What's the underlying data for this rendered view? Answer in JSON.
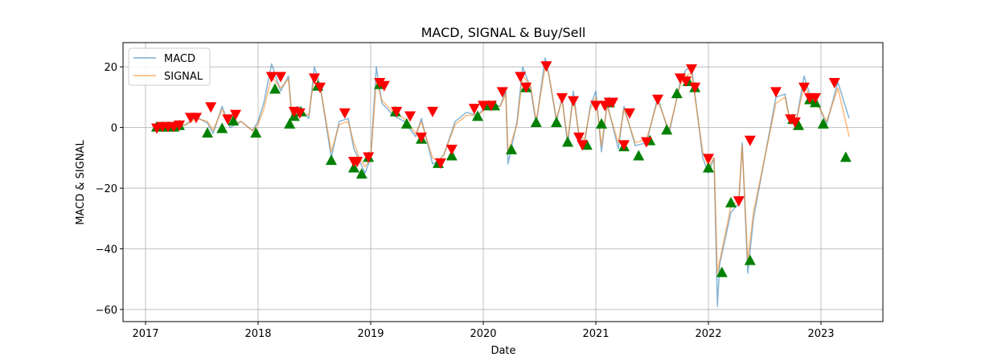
{
  "chart_data": {
    "type": "line",
    "title": "MACD, SIGNAL & Buy/Sell",
    "xlabel": "Date",
    "ylabel": "MACD & SIGNAL",
    "xlim": [
      2016.8,
      2023.55
    ],
    "ylim": [
      -64,
      28
    ],
    "x_ticks": [
      2017,
      2018,
      2019,
      2020,
      2021,
      2022,
      2023
    ],
    "x_tick_labels": [
      "2017",
      "2018",
      "2019",
      "2020",
      "2021",
      "2022",
      "2023"
    ],
    "y_ticks": [
      -60,
      -40,
      -20,
      0,
      20
    ],
    "y_tick_labels": [
      "−60",
      "−40",
      "−20",
      "0",
      "20"
    ],
    "grid": true,
    "legend": {
      "position": "upper-left",
      "entries": [
        "MACD",
        "SIGNAL"
      ]
    },
    "colors": {
      "macd": "#1f77b4",
      "signal": "#ff7f0e",
      "buy": "#008000",
      "sell": "#ff0000"
    },
    "series": [
      {
        "name": "MACD",
        "x": [
          2017.08,
          2017.2,
          2017.35,
          2017.45,
          2017.55,
          2017.6,
          2017.68,
          2017.75,
          2017.85,
          2017.95,
          2018.0,
          2018.05,
          2018.12,
          2018.2,
          2018.27,
          2018.3,
          2018.35,
          2018.45,
          2018.5,
          2018.55,
          2018.65,
          2018.72,
          2018.8,
          2018.85,
          2018.9,
          2018.95,
          2019.0,
          2019.05,
          2019.1,
          2019.2,
          2019.3,
          2019.4,
          2019.45,
          2019.55,
          2019.6,
          2019.65,
          2019.75,
          2019.85,
          2019.95,
          2020.05,
          2020.15,
          2020.2,
          2020.22,
          2020.3,
          2020.35,
          2020.42,
          2020.47,
          2020.55,
          2020.58,
          2020.65,
          2020.7,
          2020.75,
          2020.8,
          2020.85,
          2020.9,
          2020.95,
          2021.0,
          2021.05,
          2021.1,
          2021.2,
          2021.25,
          2021.35,
          2021.45,
          2021.55,
          2021.65,
          2021.75,
          2021.8,
          2021.85,
          2021.95,
          2022.0,
          2022.05,
          2022.08,
          2022.1,
          2022.2,
          2022.27,
          2022.3,
          2022.35,
          2022.4,
          2022.5,
          2022.6,
          2022.68,
          2022.72,
          2022.78,
          2022.85,
          2022.9,
          2022.95,
          2023.05,
          2023.15,
          2023.25
        ],
        "values": [
          0.5,
          1,
          0.8,
          3.5,
          1.5,
          -2,
          7,
          0,
          2,
          -1,
          2,
          8,
          21,
          12,
          17,
          3,
          7,
          3,
          20,
          14,
          -10,
          2,
          3,
          -7,
          -11,
          -15,
          -10,
          20,
          8,
          4,
          2,
          -3,
          3,
          -12,
          -11,
          -9,
          2,
          5,
          4,
          8,
          7,
          12,
          -12,
          2,
          20,
          13,
          1,
          23,
          18,
          2,
          10,
          -6,
          12,
          -3,
          -5,
          7,
          12,
          -8,
          8,
          -7,
          7,
          -6,
          -5,
          10,
          -2,
          15,
          19,
          20,
          -10,
          -15,
          -10,
          -59,
          -45,
          -28,
          -25,
          -5,
          -48,
          -30,
          -10,
          10,
          11,
          3,
          2,
          17,
          11,
          10,
          1,
          15,
          3
        ]
      },
      {
        "name": "SIGNAL",
        "x": [
          2017.08,
          2017.2,
          2017.35,
          2017.45,
          2017.55,
          2017.6,
          2017.68,
          2017.75,
          2017.85,
          2017.95,
          2018.0,
          2018.05,
          2018.12,
          2018.2,
          2018.27,
          2018.3,
          2018.35,
          2018.45,
          2018.5,
          2018.55,
          2018.65,
          2018.72,
          2018.8,
          2018.85,
          2018.9,
          2018.95,
          2019.0,
          2019.05,
          2019.1,
          2019.2,
          2019.3,
          2019.4,
          2019.45,
          2019.55,
          2019.6,
          2019.65,
          2019.75,
          2019.85,
          2019.95,
          2020.05,
          2020.15,
          2020.2,
          2020.22,
          2020.3,
          2020.35,
          2020.42,
          2020.47,
          2020.55,
          2020.58,
          2020.65,
          2020.7,
          2020.75,
          2020.8,
          2020.85,
          2020.9,
          2020.95,
          2021.0,
          2021.05,
          2021.1,
          2021.2,
          2021.25,
          2021.35,
          2021.45,
          2021.55,
          2021.65,
          2021.75,
          2021.8,
          2021.85,
          2021.95,
          2022.0,
          2022.05,
          2022.08,
          2022.1,
          2022.2,
          2022.27,
          2022.3,
          2022.35,
          2022.4,
          2022.5,
          2022.6,
          2022.68,
          2022.72,
          2022.78,
          2022.85,
          2022.9,
          2022.95,
          2023.05,
          2023.15,
          2023.25
        ],
        "values": [
          0.5,
          1,
          0.8,
          3,
          2,
          -1,
          6,
          1,
          2,
          -1,
          1,
          6,
          17,
          13,
          16,
          4,
          6,
          4,
          17,
          14,
          -8,
          1,
          2,
          -5,
          -10,
          -13,
          -10,
          15,
          9,
          5,
          3,
          -2,
          2,
          -10,
          -11,
          -9,
          1,
          4,
          4,
          7,
          7,
          11,
          -8,
          1,
          17,
          14,
          2,
          20,
          18,
          3,
          9,
          -4,
          10,
          -2,
          -4,
          6,
          10,
          -6,
          7,
          -5,
          6,
          -5,
          -4,
          9,
          -1,
          14,
          17,
          18,
          -8,
          -13,
          -10,
          -48,
          -44,
          -26,
          -24,
          -6,
          -44,
          -28,
          -10,
          8,
          10,
          3,
          2,
          14,
          10,
          9,
          2,
          13,
          -3
        ]
      }
    ],
    "buy_points": {
      "x": [
        2017.1,
        2017.15,
        2017.2,
        2017.25,
        2017.3,
        2017.55,
        2017.68,
        2017.78,
        2017.98,
        2018.15,
        2018.28,
        2018.32,
        2018.38,
        2018.53,
        2018.65,
        2018.85,
        2018.92,
        2018.98,
        2019.08,
        2019.22,
        2019.32,
        2019.45,
        2019.6,
        2019.72,
        2019.95,
        2020.05,
        2020.1,
        2020.25,
        2020.38,
        2020.47,
        2020.65,
        2020.75,
        2020.92,
        2021.05,
        2021.12,
        2021.25,
        2021.38,
        2021.48,
        2021.63,
        2021.72,
        2021.82,
        2021.88,
        2022.0,
        2022.12,
        2022.2,
        2022.37,
        2022.75,
        2022.8,
        2022.9,
        2022.95,
        2023.02,
        2023.22
      ],
      "values": [
        0,
        0,
        0,
        0,
        0.5,
        -2,
        -0.5,
        2,
        -2,
        12.5,
        1,
        3.5,
        5,
        13.5,
        -11,
        -13.5,
        -15.5,
        -10,
        14,
        5,
        1,
        -4,
        -12,
        -9.5,
        3.5,
        7,
        7,
        -7.5,
        13,
        1.5,
        1.5,
        -5,
        -6,
        1,
        8,
        -6.5,
        -9.5,
        -4.5,
        -1,
        11,
        15,
        13,
        -13.5,
        -48,
        -25,
        -44,
        2.5,
        0.5,
        9,
        8,
        1,
        -10
      ]
    },
    "sell_points": {
      "x": [
        2017.1,
        2017.15,
        2017.2,
        2017.25,
        2017.3,
        2017.4,
        2017.45,
        2017.58,
        2017.73,
        2017.8,
        2018.12,
        2018.2,
        2018.32,
        2018.37,
        2018.5,
        2018.55,
        2018.77,
        2018.85,
        2018.88,
        2018.98,
        2019.08,
        2019.12,
        2019.23,
        2019.35,
        2019.45,
        2019.55,
        2019.62,
        2019.72,
        2019.92,
        2020.0,
        2020.07,
        2020.17,
        2020.33,
        2020.38,
        2020.56,
        2020.7,
        2020.8,
        2020.85,
        2020.88,
        2021.0,
        2021.08,
        2021.12,
        2021.15,
        2021.25,
        2021.3,
        2021.45,
        2021.55,
        2021.75,
        2021.8,
        2021.85,
        2021.88,
        2022.0,
        2022.27,
        2022.37,
        2022.6,
        2022.73,
        2022.77,
        2022.85,
        2022.9,
        2022.95,
        2023.12
      ],
      "values": [
        0,
        0.5,
        0.5,
        0.5,
        1,
        3.5,
        3.5,
        7,
        3,
        4.5,
        17,
        17,
        5.5,
        5,
        16.5,
        13.5,
        5,
        -11,
        -11,
        -9.5,
        15,
        14,
        5.5,
        4,
        -3,
        5.5,
        -11.5,
        -7,
        6.5,
        7.5,
        7.5,
        12,
        17,
        13.5,
        20.5,
        10,
        9,
        -3,
        -5.5,
        7.5,
        7.5,
        8.5,
        8.5,
        -5.5,
        5,
        -4.5,
        9.5,
        16.5,
        15.5,
        19.5,
        13.5,
        -10,
        -24,
        -4,
        12,
        3,
        2,
        13.5,
        10,
        10,
        15
      ]
    }
  }
}
